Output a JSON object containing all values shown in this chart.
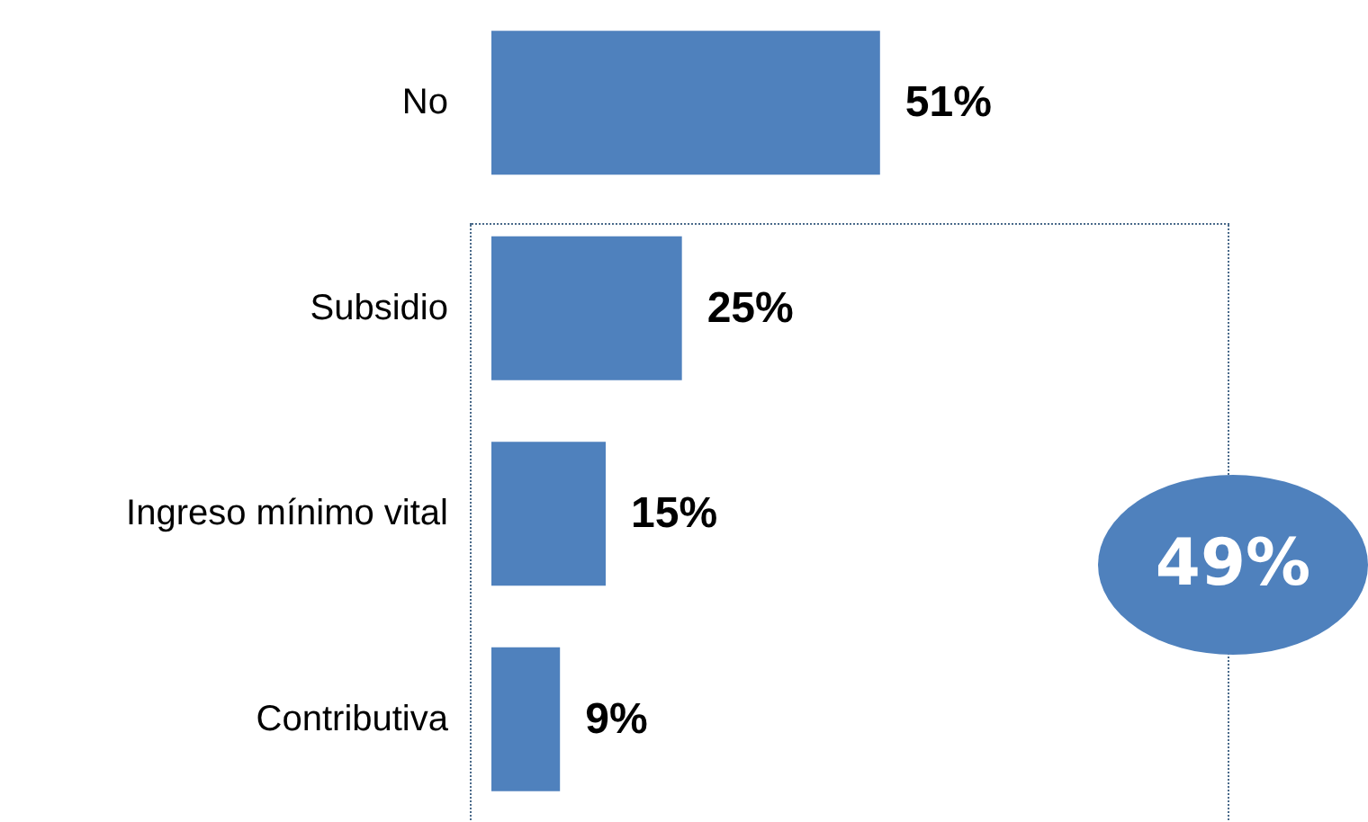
{
  "chart_data": {
    "type": "bar",
    "orientation": "horizontal",
    "categories": [
      "No",
      "Subsidio",
      "Ingreso mínimo vital",
      "Contributiva"
    ],
    "values": [
      51,
      25,
      15,
      9
    ],
    "color": "#4f81bd",
    "value_labels": [
      "51%",
      "25%",
      "15%",
      "9%"
    ],
    "tick_labels": "y",
    "annotations": [
      "49%"
    ]
  }
}
